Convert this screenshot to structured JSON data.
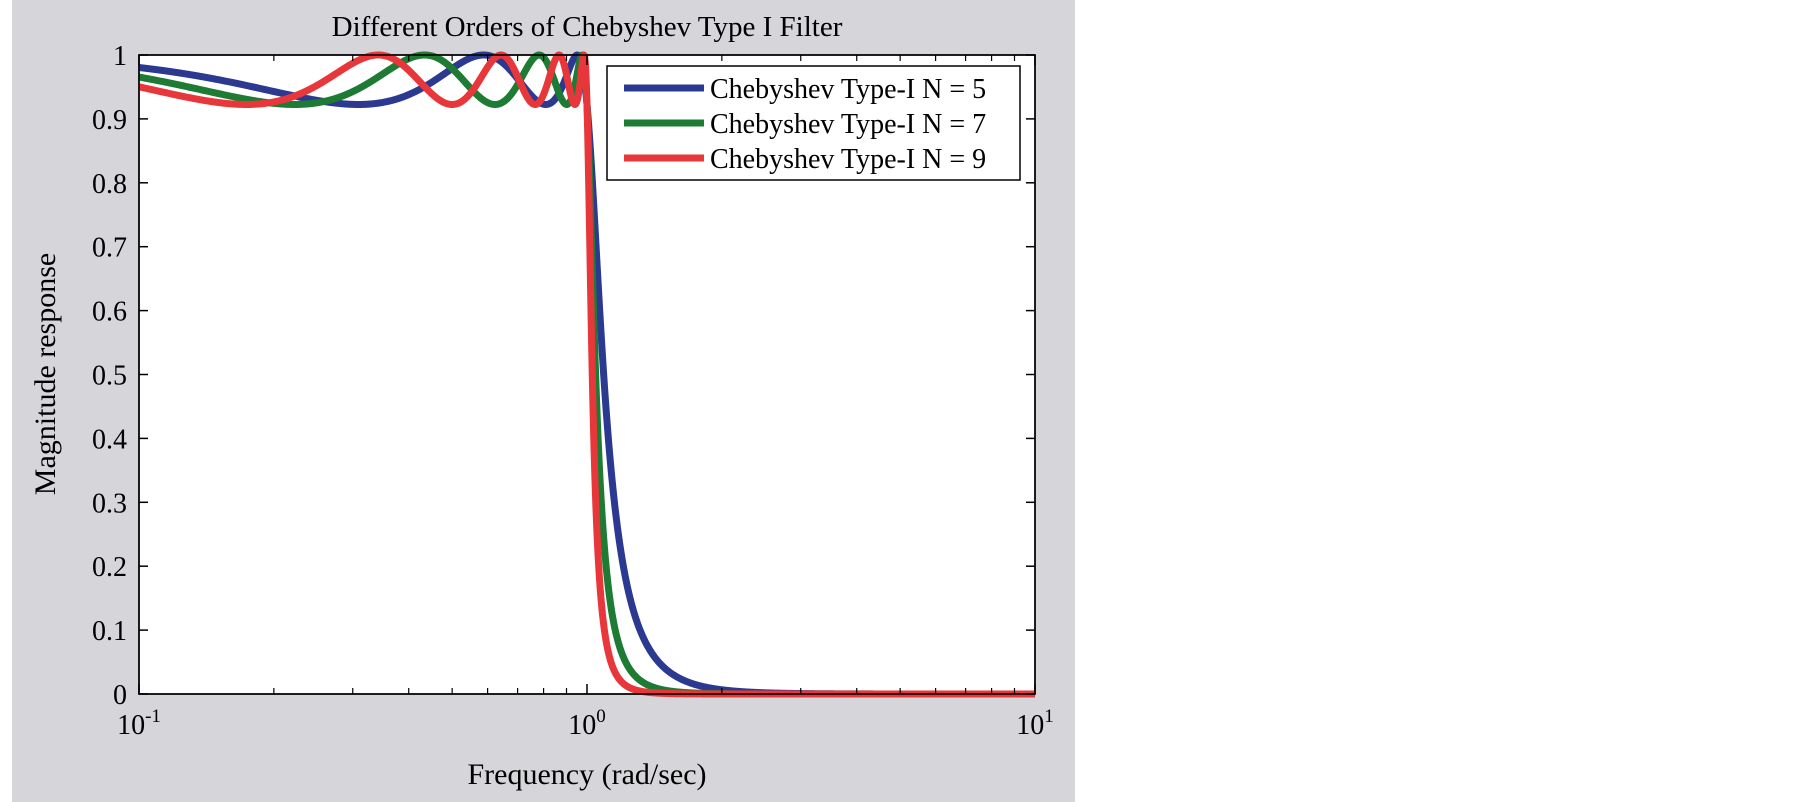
{
  "chart_data": {
    "type": "line",
    "title": "Different Orders of Chebyshev Type I Filter",
    "xlabel": "Frequency (rad/sec)",
    "ylabel": "Magnitude response",
    "xscale": "log",
    "xlim": [
      0.1,
      10
    ],
    "ylim": [
      0,
      1
    ],
    "x_ticks": [
      {
        "value": 0.1,
        "base": "10",
        "exp": "-1"
      },
      {
        "value": 1,
        "base": "10",
        "exp": "0"
      },
      {
        "value": 10,
        "base": "10",
        "exp": "1"
      }
    ],
    "y_ticks": [
      {
        "value": 0,
        "label": "0"
      },
      {
        "value": 0.1,
        "label": "0.1"
      },
      {
        "value": 0.2,
        "label": "0.2"
      },
      {
        "value": 0.3,
        "label": "0.3"
      },
      {
        "value": 0.4,
        "label": "0.4"
      },
      {
        "value": 0.5,
        "label": "0.5"
      },
      {
        "value": 0.6,
        "label": "0.6"
      },
      {
        "value": 0.7,
        "label": "0.7"
      },
      {
        "value": 0.8,
        "label": "0.8"
      },
      {
        "value": 0.9,
        "label": "0.9"
      },
      {
        "value": 1,
        "label": "1"
      }
    ],
    "grid": false,
    "legend_position": "top-right",
    "background_color": "#d5d5da",
    "ripple_db": 0.7,
    "series": [
      {
        "name": "Chebyshev Type-I N = 5",
        "order": 5,
        "color": "#2b3990"
      },
      {
        "name": "Chebyshev Type-I N = 7",
        "order": 7,
        "color": "#1e7b34"
      },
      {
        "name": "Chebyshev Type-I N = 9",
        "order": 9,
        "color": "#e8373a"
      }
    ]
  }
}
